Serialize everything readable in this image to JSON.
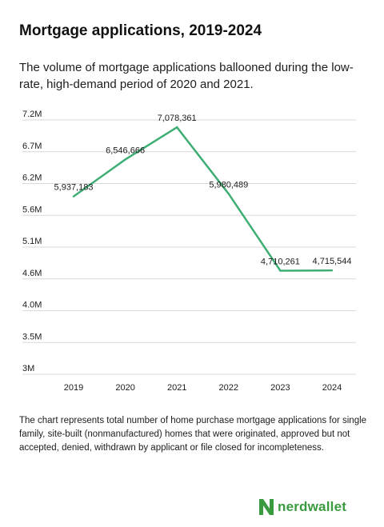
{
  "header": {
    "title": "Mortgage applications, 2019-2024",
    "subtitle": "The volume of mortgage applications ballooned during the low-rate, high-demand period of 2020 and 2021."
  },
  "footnote": "The chart represents total number of home purchase mortgage applications for single family, site-built (nonmanufactured) homes that were originated, approved but not accepted, denied, withdrawn by applicant or file closed for incompleteness.",
  "brand": {
    "name": "nerdwallet",
    "text_color": "#3a9a3f",
    "mark_color": "#3a9a3f"
  },
  "colors": {
    "line": "#3fae75",
    "grid": "#d9d9d9"
  },
  "chart_data": {
    "type": "line",
    "categories": [
      "2019",
      "2020",
      "2021",
      "2022",
      "2023",
      "2024"
    ],
    "series": [
      {
        "values": [
          5937183,
          6546666,
          7078361,
          5980489,
          4710261,
          4715544
        ]
      }
    ],
    "data_labels": [
      "5,937,183",
      "6,546,666",
      "7,078,361",
      "5,980,489",
      "4,710,261",
      "4,715,544"
    ],
    "y_ticks": [
      3000000,
      3500000,
      4000000,
      4600000,
      5100000,
      5600000,
      6200000,
      6700000,
      7200000
    ],
    "y_tick_labels": [
      "3M",
      "3.5M",
      "4.0M",
      "4.6M",
      "5.1M",
      "5.6M",
      "6.2M",
      "6.7M",
      "7.2M"
    ],
    "ylim": [
      3000000,
      7200000
    ],
    "grid": true,
    "legend": "none"
  }
}
